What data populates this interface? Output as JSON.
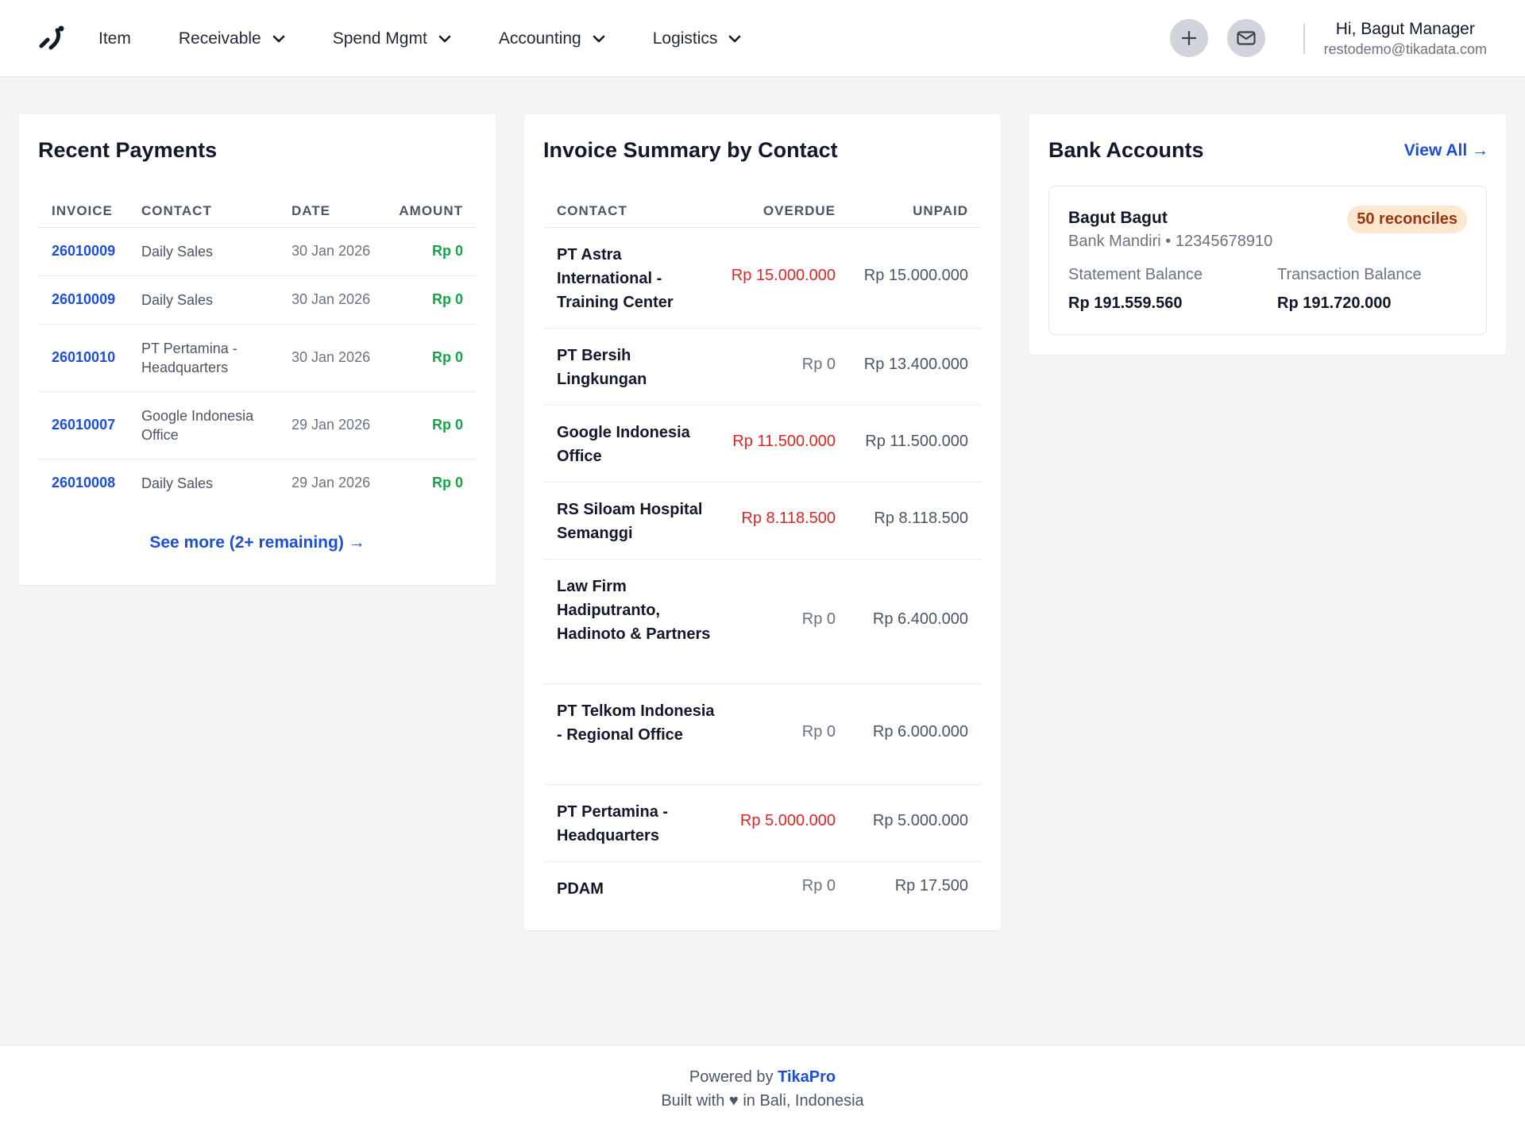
{
  "nav": {
    "items": [
      {
        "label": "Item",
        "has_dropdown": false
      },
      {
        "label": "Receivable",
        "has_dropdown": true
      },
      {
        "label": "Spend Mgmt",
        "has_dropdown": true
      },
      {
        "label": "Accounting",
        "has_dropdown": true
      },
      {
        "label": "Logistics",
        "has_dropdown": true
      }
    ],
    "user_greeting": "Hi, Bagut Manager",
    "user_email": "restodemo@tikadata.com"
  },
  "recent_payments": {
    "title": "Recent Payments",
    "columns": [
      "INVOICE",
      "CONTACT",
      "DATE",
      "AMOUNT"
    ],
    "rows": [
      {
        "invoice": "26010009",
        "contact": "Daily Sales",
        "date": "30 Jan 2026",
        "amount": "Rp 0"
      },
      {
        "invoice": "26010009",
        "contact": "Daily Sales",
        "date": "30 Jan 2026",
        "amount": "Rp 0"
      },
      {
        "invoice": "26010010",
        "contact": "PT Pertamina - Headquarters",
        "date": "30 Jan 2026",
        "amount": "Rp 0"
      },
      {
        "invoice": "26010007",
        "contact": "Google Indonesia Office",
        "date": "29 Jan 2026",
        "amount": "Rp 0"
      },
      {
        "invoice": "26010008",
        "contact": "Daily Sales",
        "date": "29 Jan 2026",
        "amount": "Rp 0"
      }
    ],
    "see_more": "See more (2+ remaining) →"
  },
  "invoice_summary": {
    "title": "Invoice Summary by Contact",
    "columns": [
      "CONTACT",
      "OVERDUE",
      "UNPAID"
    ],
    "rows": [
      {
        "contact": "PT Astra International - Training Center",
        "overdue": "Rp 15.000.000",
        "unpaid": "Rp 15.000.000"
      },
      {
        "contact": "PT Bersih Lingkungan",
        "overdue": "Rp 0",
        "unpaid": "Rp 13.400.000"
      },
      {
        "contact": "Google Indonesia Office",
        "overdue": "Rp 11.500.000",
        "unpaid": "Rp 11.500.000"
      },
      {
        "contact": "RS Siloam Hospital Semanggi",
        "overdue": "Rp 8.118.500",
        "unpaid": "Rp 8.118.500"
      },
      {
        "contact": "Law Firm Hadiputranto, Hadinoto & Partners",
        "overdue": "Rp 0",
        "unpaid": "Rp 6.400.000"
      },
      {
        "contact": "PT Telkom Indonesia - Regional Office",
        "overdue": "Rp 0",
        "unpaid": "Rp 6.000.000"
      },
      {
        "contact": "PT Pertamina - Headquarters",
        "overdue": "Rp 5.000.000",
        "unpaid": "Rp 5.000.000"
      },
      {
        "contact": "PDAM",
        "overdue": "Rp 0",
        "unpaid": "Rp 17.500"
      }
    ]
  },
  "bank_accounts": {
    "title": "Bank Accounts",
    "view_all": "View All →",
    "account": {
      "name": "Bagut Bagut",
      "bank_line": "Bank Mandiri • 12345678910",
      "badge": "50 reconciles",
      "statement_label": "Statement Balance",
      "statement_value": "Rp 191.559.560",
      "transaction_label": "Transaction Balance",
      "transaction_value": "Rp 191.720.000"
    }
  },
  "footer": {
    "powered_by": "Powered by",
    "brand": "TikaPro",
    "built_with": "Built with ♥ in Bali, Indonesia"
  },
  "colors": {
    "link": "#1d4ed8",
    "overdue": "#dc2626",
    "amount_green": "#16a34a",
    "badge_bg": "#fde8cf"
  },
  "icons": {
    "logo": "tikapro-logo-icon",
    "add": "plus-icon",
    "mail": "mail-icon",
    "dropdown": "chevron-down-icon"
  }
}
